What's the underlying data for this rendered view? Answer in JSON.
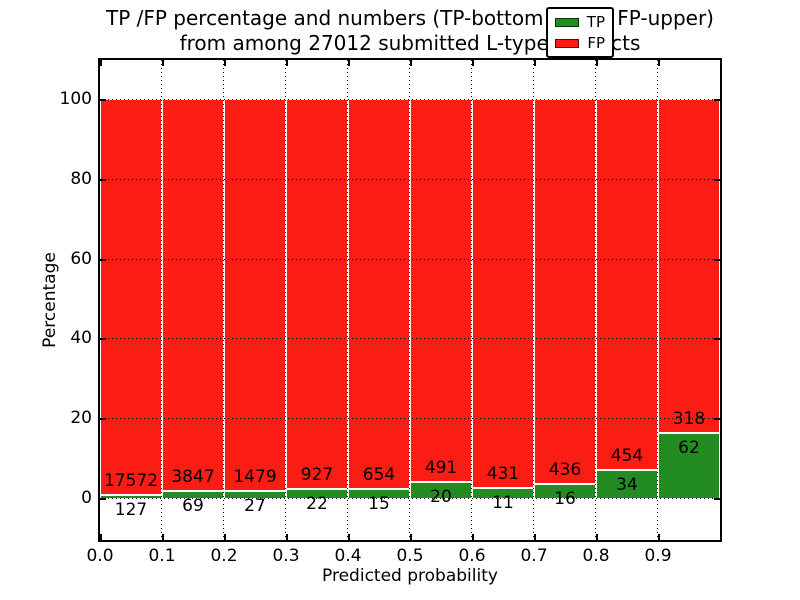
{
  "title": {
    "line1": "TP /FP percentage and numbers (TP-bottom value, FP-upper)",
    "line2": "from among 27012 submitted L-type contacts"
  },
  "axes": {
    "ylabel": "Percentage",
    "xlabel": "Predicted probability",
    "ytick_labels": [
      "0",
      "20",
      "40",
      "60",
      "80",
      "100"
    ],
    "xtick_labels": [
      "0.0",
      "0.1",
      "0.2",
      "0.3",
      "0.4",
      "0.5",
      "0.6",
      "0.7",
      "0.8",
      "0.9"
    ]
  },
  "legend": {
    "items": [
      {
        "label": "TP",
        "color": "#228b22"
      },
      {
        "label": "FP",
        "color": "#fb1c13"
      }
    ]
  },
  "colors": {
    "tp_green": "#228b22",
    "fp_red": "#fb1c13",
    "grid": "#000000",
    "bar_edge": "#ffffff"
  },
  "chart_data": {
    "type": "bar",
    "stacked": true,
    "normalized": "each bin stacked to 100%, annotated with raw counts",
    "categories": [
      "0.0-0.1",
      "0.1-0.2",
      "0.2-0.3",
      "0.3-0.4",
      "0.4-0.5",
      "0.5-0.6",
      "0.6-0.7",
      "0.7-0.8",
      "0.8-0.9",
      "0.9-1.0"
    ],
    "series": [
      {
        "name": "TP",
        "color": "#228b22",
        "counts": [
          127,
          69,
          27,
          22,
          15,
          20,
          11,
          16,
          34,
          62
        ]
      },
      {
        "name": "FP",
        "color": "#fb1c13",
        "counts": [
          17572,
          3847,
          1479,
          927,
          654,
          491,
          431,
          436,
          454,
          318
        ]
      }
    ],
    "tp_percent": [
      0.72,
      1.76,
      1.79,
      2.32,
      2.24,
      3.91,
      2.49,
      3.54,
      6.97,
      16.32
    ],
    "total_contacts": 27012,
    "title": "TP /FP percentage and numbers (TP-bottom value, FP-upper) from among 27012 submitted L-type contacts",
    "xlabel": "Predicted probability",
    "ylabel": "Percentage",
    "xlim": [
      0.0,
      1.0
    ],
    "ylim": [
      -10.5,
      110
    ],
    "yticks": [
      0,
      20,
      40,
      60,
      80,
      100
    ],
    "xticks": [
      0.0,
      0.1,
      0.2,
      0.3,
      0.4,
      0.5,
      0.6,
      0.7,
      0.8,
      0.9
    ],
    "grid": "dotted, drawn above bars",
    "legend_position": "upper right"
  }
}
